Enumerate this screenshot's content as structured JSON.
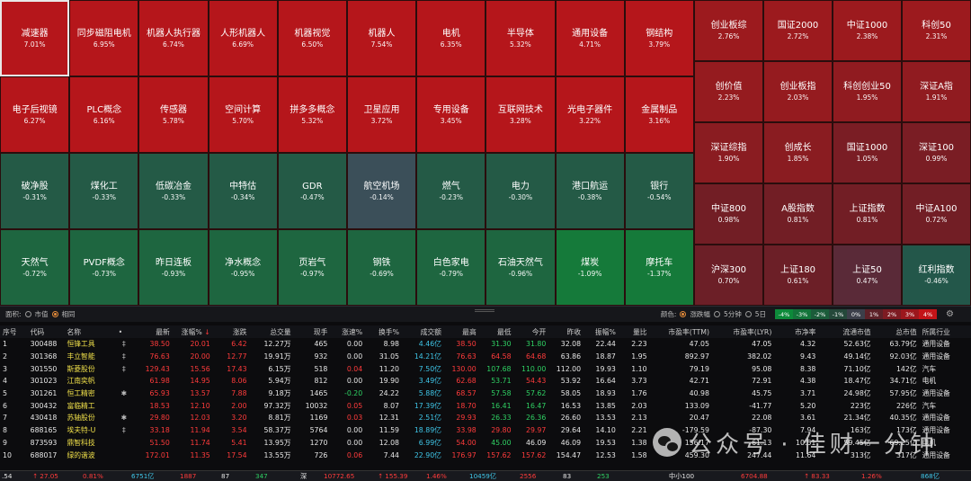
{
  "sectors": [
    {
      "name": "减速器",
      "pct": "7.01%",
      "color": "#b5161b"
    },
    {
      "name": "同步磁阻电机",
      "pct": "6.95%",
      "color": "#b5161b"
    },
    {
      "name": "机器人执行器",
      "pct": "6.74%",
      "color": "#b5161b"
    },
    {
      "name": "人形机器人",
      "pct": "6.69%",
      "color": "#b5161b"
    },
    {
      "name": "机器视觉",
      "pct": "6.50%",
      "color": "#b5161b"
    },
    {
      "name": "机器人",
      "pct": "7.54%",
      "color": "#b5161b"
    },
    {
      "name": "电机",
      "pct": "6.35%",
      "color": "#b5161b"
    },
    {
      "name": "半导体",
      "pct": "5.32%",
      "color": "#b5161b"
    },
    {
      "name": "通用设备",
      "pct": "4.71%",
      "color": "#b5161b"
    },
    {
      "name": "钢结构",
      "pct": "3.79%",
      "color": "#b5161b"
    },
    {
      "name": "电子后视镜",
      "pct": "6.27%",
      "color": "#b5161b"
    },
    {
      "name": "PLC概念",
      "pct": "6.16%",
      "color": "#b5161b"
    },
    {
      "name": "传感器",
      "pct": "5.78%",
      "color": "#b5161b"
    },
    {
      "name": "空间计算",
      "pct": "5.70%",
      "color": "#b5161b"
    },
    {
      "name": "拼多多概念",
      "pct": "5.32%",
      "color": "#b5161b"
    },
    {
      "name": "卫星应用",
      "pct": "3.72%",
      "color": "#b5161b"
    },
    {
      "name": "专用设备",
      "pct": "3.45%",
      "color": "#b5161b"
    },
    {
      "name": "互联网技术",
      "pct": "3.28%",
      "color": "#b5161b"
    },
    {
      "name": "光电子器件",
      "pct": "3.22%",
      "color": "#b5161b"
    },
    {
      "name": "金属制品",
      "pct": "3.16%",
      "color": "#b5161b"
    },
    {
      "name": "破净股",
      "pct": "-0.31%",
      "color": "#245a46"
    },
    {
      "name": "煤化工",
      "pct": "-0.33%",
      "color": "#245a46"
    },
    {
      "name": "低碳冶金",
      "pct": "-0.33%",
      "color": "#245a46"
    },
    {
      "name": "中特估",
      "pct": "-0.34%",
      "color": "#245a46"
    },
    {
      "name": "GDR",
      "pct": "-0.47%",
      "color": "#245a46"
    },
    {
      "name": "航空机场",
      "pct": "-0.14%",
      "color": "#3b4f59"
    },
    {
      "name": "燃气",
      "pct": "-0.23%",
      "color": "#245a46"
    },
    {
      "name": "电力",
      "pct": "-0.30%",
      "color": "#245a46"
    },
    {
      "name": "港口航运",
      "pct": "-0.38%",
      "color": "#245a46"
    },
    {
      "name": "银行",
      "pct": "-0.54%",
      "color": "#245a46"
    },
    {
      "name": "天然气",
      "pct": "-0.72%",
      "color": "#1e6640"
    },
    {
      "name": "PVDF概念",
      "pct": "-0.73%",
      "color": "#1e6640"
    },
    {
      "name": "昨日连板",
      "pct": "-0.93%",
      "color": "#1e6640"
    },
    {
      "name": "净水概念",
      "pct": "-0.95%",
      "color": "#1e6640"
    },
    {
      "name": "页岩气",
      "pct": "-0.97%",
      "color": "#1e6640"
    },
    {
      "name": "钢铁",
      "pct": "-0.69%",
      "color": "#1e6640"
    },
    {
      "name": "白色家电",
      "pct": "-0.79%",
      "color": "#1e6640"
    },
    {
      "name": "石油天然气",
      "pct": "-0.96%",
      "color": "#1e6640"
    },
    {
      "name": "煤炭",
      "pct": "-1.09%",
      "color": "#157a3a"
    },
    {
      "name": "摩托车",
      "pct": "-1.37%",
      "color": "#157a3a"
    }
  ],
  "indices": [
    {
      "name": "创业板综",
      "pct": "2.76%",
      "color": "#9c1a1e"
    },
    {
      "name": "国证2000",
      "pct": "2.72%",
      "color": "#9c1a1e"
    },
    {
      "name": "中证1000",
      "pct": "2.38%",
      "color": "#9c1a1e"
    },
    {
      "name": "科创50",
      "pct": "2.31%",
      "color": "#9c1a1e"
    },
    {
      "name": "创价值",
      "pct": "2.23%",
      "color": "#951b1f"
    },
    {
      "name": "创业板指",
      "pct": "2.03%",
      "color": "#951b1f"
    },
    {
      "name": "科创创业50",
      "pct": "1.95%",
      "color": "#901b20"
    },
    {
      "name": "深证A指",
      "pct": "1.91%",
      "color": "#901b20"
    },
    {
      "name": "深证综指",
      "pct": "1.90%",
      "color": "#8a1c21"
    },
    {
      "name": "创成长",
      "pct": "1.85%",
      "color": "#8a1c21"
    },
    {
      "name": "国证1000",
      "pct": "1.05%",
      "color": "#7a1d24"
    },
    {
      "name": "深证100",
      "pct": "0.99%",
      "color": "#7a1d24"
    },
    {
      "name": "中证800",
      "pct": "0.98%",
      "color": "#721e25"
    },
    {
      "name": "A股指数",
      "pct": "0.81%",
      "color": "#721e25"
    },
    {
      "name": "上证指数",
      "pct": "0.81%",
      "color": "#721e25"
    },
    {
      "name": "中证A100",
      "pct": "0.72%",
      "color": "#721e25"
    },
    {
      "name": "沪深300",
      "pct": "0.70%",
      "color": "#6c1f27"
    },
    {
      "name": "上证180",
      "pct": "0.61%",
      "color": "#6c1f27"
    },
    {
      "name": "上证50",
      "pct": "0.47%",
      "color": "#5a2a38"
    },
    {
      "name": "红利指数",
      "pct": "-0.46%",
      "color": "#23574a"
    }
  ],
  "controls": {
    "area_label": "面积:",
    "opt_cap": "市值",
    "opt_same": "相同",
    "color_label": "颜色:",
    "opt_change": "涨跌幅",
    "opt_5min": "5分钟",
    "opt_5day": "5日",
    "legend": [
      {
        "label": "-4%",
        "color": "#0d8a3a"
      },
      {
        "label": "-3%",
        "color": "#13743a"
      },
      {
        "label": "-2%",
        "color": "#1b5c3a"
      },
      {
        "label": "-1%",
        "color": "#24483a"
      },
      {
        "label": "0%",
        "color": "#3c3f4a"
      },
      {
        "label": "1%",
        "color": "#5c2128"
      },
      {
        "label": "2%",
        "color": "#7d1b22"
      },
      {
        "label": "3%",
        "color": "#9c171c"
      },
      {
        "label": "4%",
        "color": "#c41418"
      }
    ]
  },
  "table": {
    "headers": [
      "序号",
      "代码",
      "名称",
      "•",
      "最新",
      "涨幅%",
      "涨跌",
      "总交量",
      "现手",
      "涨速%",
      "换手%",
      "成交额",
      "最高",
      "最低",
      "今开",
      "昨收",
      "振幅%",
      "量比",
      "市盈率(TTM)",
      "市盈率(LYR)",
      "市净率",
      "流通市值",
      "总市值",
      "所属行业"
    ],
    "sort_arrow": "↓",
    "rows": [
      [
        "1",
        "300488",
        "恒锋工具",
        "‡",
        "38.50",
        "20.01",
        "6.42",
        "12.27万",
        "465",
        "0.00",
        "8.98",
        "4.46亿",
        "38.50",
        "31.30",
        "31.80",
        "32.08",
        "22.44",
        "2.23",
        "47.05",
        "47.05",
        "4.32",
        "52.63亿",
        "63.79亿",
        "通用设备"
      ],
      [
        "2",
        "301368",
        "丰立智能",
        "‡",
        "76.63",
        "20.00",
        "12.77",
        "19.91万",
        "932",
        "0.00",
        "31.05",
        "14.21亿",
        "76.63",
        "64.58",
        "64.68",
        "63.86",
        "18.87",
        "1.95",
        "892.97",
        "382.02",
        "9.43",
        "49.14亿",
        "92.03亿",
        "通用设备"
      ],
      [
        "3",
        "301550",
        "斯菱股份",
        "‡",
        "129.43",
        "15.56",
        "17.43",
        "6.15万",
        "518",
        "0.04",
        "11.20",
        "7.50亿",
        "130.00",
        "107.68",
        "110.00",
        "112.00",
        "19.93",
        "1.10",
        "79.19",
        "95.08",
        "8.38",
        "71.10亿",
        "142亿",
        "汽车"
      ],
      [
        "4",
        "301023",
        "江南奕帆",
        "",
        "61.98",
        "14.95",
        "8.06",
        "5.94万",
        "812",
        "0.00",
        "19.90",
        "3.49亿",
        "62.68",
        "53.71",
        "54.43",
        "53.92",
        "16.64",
        "3.73",
        "42.71",
        "72.91",
        "4.38",
        "18.47亿",
        "34.71亿",
        "电机"
      ],
      [
        "5",
        "301261",
        "恒工精密",
        "✱",
        "65.93",
        "13.57",
        "7.88",
        "9.18万",
        "1465",
        "-0.20",
        "24.22",
        "5.88亿",
        "68.57",
        "57.58",
        "57.62",
        "58.05",
        "18.93",
        "1.76",
        "40.98",
        "45.75",
        "3.71",
        "24.98亿",
        "57.95亿",
        "通用设备"
      ],
      [
        "6",
        "300432",
        "富临精工",
        "",
        "18.53",
        "12.10",
        "2.00",
        "97.32万",
        "10032",
        "0.05",
        "8.07",
        "17.39亿",
        "18.70",
        "16.41",
        "16.47",
        "16.53",
        "13.85",
        "2.03",
        "133.09",
        "-41.77",
        "5.20",
        "223亿",
        "226亿",
        "汽车"
      ],
      [
        "7",
        "430418",
        "苏轴股份",
        "✱",
        "29.80",
        "12.03",
        "3.20",
        "8.81万",
        "1169",
        "0.03",
        "12.31",
        "2.51亿",
        "29.93",
        "26.33",
        "26.36",
        "26.60",
        "13.53",
        "2.13",
        "20.47",
        "22.08",
        "3.61",
        "21.34亿",
        "40.35亿",
        "通用设备"
      ],
      [
        "8",
        "688165",
        "埃夫特-U",
        "‡",
        "33.18",
        "11.94",
        "3.54",
        "58.37万",
        "5764",
        "0.00",
        "11.59",
        "18.89亿",
        "33.98",
        "29.80",
        "29.97",
        "29.64",
        "14.10",
        "2.21",
        "-179.59",
        "-87.30",
        "7.94",
        "163亿",
        "173亿",
        "通用设备"
      ],
      [
        "9",
        "873593",
        "鼎智科技",
        "",
        "51.50",
        "11.74",
        "5.41",
        "13.95万",
        "1270",
        "0.00",
        "12.08",
        "6.99亿",
        "54.00",
        "45.00",
        "46.09",
        "46.09",
        "19.53",
        "1.38",
        "156.17",
        "61.13",
        "10.51",
        "59.45亿",
        "69.25亿",
        "电机"
      ],
      [
        "10",
        "688017",
        "绿的谐波",
        "",
        "172.01",
        "11.35",
        "17.54",
        "13.55万",
        "726",
        "0.06",
        "7.44",
        "22.90亿",
        "176.97",
        "157.62",
        "157.62",
        "154.47",
        "12.53",
        "1.58",
        "459.30",
        "247.44",
        "11.64",
        "313亿",
        "317亿",
        "通用设备"
      ]
    ],
    "row_colors": {
      "price": "red",
      "change": "red"
    }
  },
  "bottom": {
    "items": [
      {
        "text": ".54",
        "color": "#e6e6e6"
      },
      {
        "text": "↑ 27.05",
        "color": "#ff3b3b"
      },
      {
        "text": "0.81%",
        "color": "#ff3b3b"
      },
      {
        "text": "6751亿",
        "color": "#3fc6e8"
      },
      {
        "text": "1887",
        "color": "#ff3b3b"
      },
      {
        "text": "87",
        "color": "#e6e6e6"
      },
      {
        "text": "347",
        "color": "#2fd163"
      },
      {
        "text": "深",
        "color": "#e6e6e6"
      },
      {
        "text": "10772.65",
        "color": "#ff3b3b"
      },
      {
        "text": "↑ 155.39",
        "color": "#ff3b3b"
      },
      {
        "text": "1.46%",
        "color": "#ff3b3b"
      },
      {
        "text": "10459亿",
        "color": "#3fc6e8"
      },
      {
        "text": "2556",
        "color": "#ff3b3b"
      },
      {
        "text": "83",
        "color": "#e6e6e6"
      },
      {
        "text": "253",
        "color": "#2fd163"
      },
      {
        "text": "中小100",
        "color": "#e6e6e6"
      },
      {
        "text": "6704.88",
        "color": "#ff3b3b"
      },
      {
        "text": "↑ 83.33",
        "color": "#ff3b3b"
      },
      {
        "text": "1.26%",
        "color": "#ff3b3b"
      },
      {
        "text": "868亿",
        "color": "#3fc6e8"
      }
    ]
  },
  "watermark": {
    "text": "公众号 · 佳财一分钟"
  }
}
